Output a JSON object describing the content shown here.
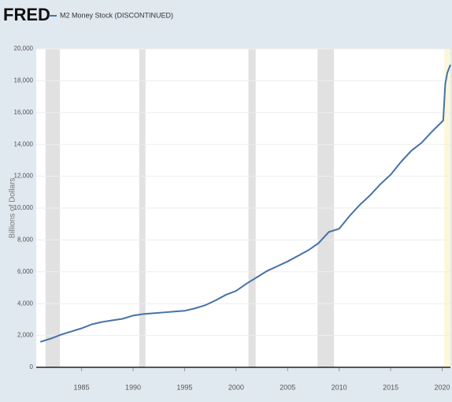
{
  "chart_data": {
    "type": "line",
    "brand": "FRED",
    "title": "M2 Money Stock (DISCONTINUED)",
    "ylabel": "Billions of Dollars",
    "x": [
      1981,
      1982,
      1983,
      1984,
      1985,
      1986,
      1987,
      1988,
      1989,
      1990,
      1991,
      1992,
      1993,
      1994,
      1995,
      1996,
      1997,
      1998,
      1999,
      2000,
      2001,
      2002,
      2003,
      2004,
      2005,
      2006,
      2007,
      2008,
      2009,
      2010,
      2011,
      2012,
      2013,
      2014,
      2015,
      2016,
      2017,
      2018,
      2019,
      2020.1,
      2020.3,
      2020.5,
      2020.8
    ],
    "series": [
      {
        "name": "M2 Money Stock (DISCONTINUED)",
        "color": "#4572a7",
        "values": [
          1600,
          1800,
          2050,
          2250,
          2450,
          2700,
          2850,
          2950,
          3050,
          3250,
          3350,
          3400,
          3450,
          3500,
          3550,
          3700,
          3900,
          4200,
          4550,
          4800,
          5250,
          5650,
          6050,
          6350,
          6650,
          7000,
          7350,
          7800,
          8500,
          8700,
          9500,
          10200,
          10800,
          11500,
          12100,
          12900,
          13600,
          14100,
          14800,
          15500,
          17800,
          18500,
          19000
        ]
      }
    ],
    "recessions": [
      [
        1981.5,
        1982.9
      ],
      [
        1990.6,
        1991.2
      ],
      [
        2001.2,
        2001.9
      ],
      [
        2007.9,
        2009.5
      ]
    ],
    "highlight": [
      2020.2,
      2020.8
    ],
    "xlim": [
      1980.6,
      2020.8
    ],
    "xticks": [
      1985,
      1990,
      1995,
      2000,
      2005,
      2010,
      2015,
      2020
    ],
    "ylim": [
      0,
      20000
    ],
    "yticks": [
      0,
      {
        "value": 2000,
        "label": "2,000"
      },
      {
        "value": 4000,
        "label": "4,000"
      },
      {
        "value": 6000,
        "label": "6,000"
      },
      {
        "value": 8000,
        "label": "8,000"
      },
      {
        "value": 10000,
        "label": "10,000"
      },
      {
        "value": 12000,
        "label": "12,000"
      },
      {
        "value": 14000,
        "label": "14,000"
      },
      {
        "value": 16000,
        "label": "16,000"
      },
      {
        "value": 18000,
        "label": "18,000"
      },
      {
        "value": 20000,
        "label": "20,000"
      }
    ],
    "grid": true
  }
}
